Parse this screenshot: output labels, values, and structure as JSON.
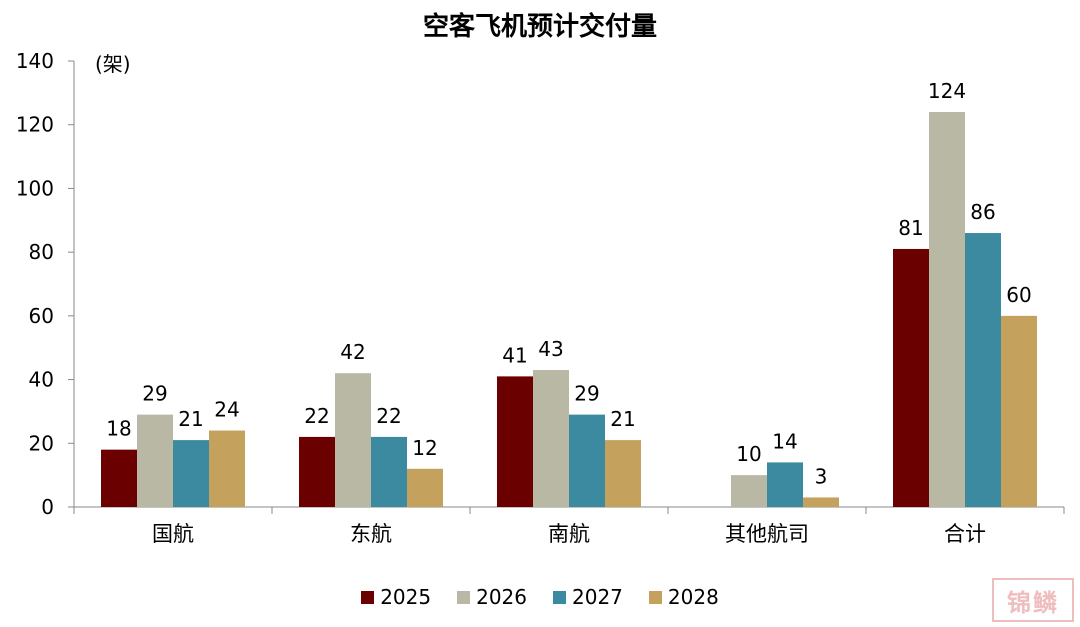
{
  "chart_data": {
    "type": "bar",
    "title": "空客飞机预计交付量",
    "ylabel": "(架)",
    "xlabel": "",
    "ylim": [
      0,
      140
    ],
    "yticks": [
      0,
      20,
      40,
      60,
      80,
      100,
      120,
      140
    ],
    "categories": [
      "国航",
      "东航",
      "南航",
      "其他航司",
      "合计"
    ],
    "series": [
      {
        "name": "2025",
        "color": "#6b0000",
        "values": [
          18,
          22,
          41,
          null,
          81
        ]
      },
      {
        "name": "2026",
        "color": "#b8b8a4",
        "values": [
          29,
          42,
          43,
          10,
          124
        ]
      },
      {
        "name": "2027",
        "color": "#3c8aa0",
        "values": [
          21,
          22,
          29,
          14,
          86
        ]
      },
      {
        "name": "2028",
        "color": "#c4a25e",
        "values": [
          24,
          12,
          21,
          3,
          60
        ]
      }
    ],
    "legend_position": "bottom-center",
    "grid": false
  },
  "watermark": "锦鳞"
}
